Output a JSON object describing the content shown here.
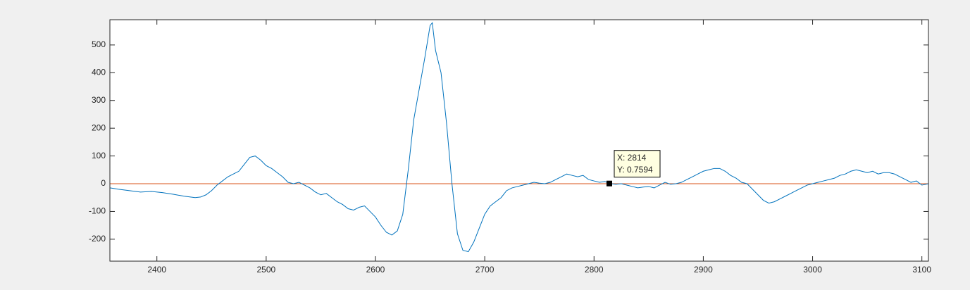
{
  "chart_data": {
    "type": "line",
    "series": [
      {
        "color": "#0072bd",
        "x": [
          2357,
          2365,
          2375,
          2385,
          2395,
          2405,
          2415,
          2425,
          2435,
          2440,
          2445,
          2450,
          2455,
          2460,
          2465,
          2470,
          2475,
          2480,
          2485,
          2490,
          2495,
          2500,
          2505,
          2510,
          2515,
          2520,
          2525,
          2530,
          2535,
          2540,
          2545,
          2550,
          2555,
          2560,
          2565,
          2570,
          2575,
          2580,
          2585,
          2590,
          2595,
          2600,
          2605,
          2610,
          2615,
          2620,
          2625,
          2630,
          2635,
          2640,
          2645,
          2650,
          2652,
          2655,
          2660,
          2665,
          2670,
          2675,
          2680,
          2685,
          2690,
          2695,
          2700,
          2705,
          2710,
          2715,
          2720,
          2725,
          2730,
          2735,
          2740,
          2745,
          2750,
          2755,
          2760,
          2765,
          2770,
          2775,
          2780,
          2785,
          2790,
          2795,
          2800,
          2805,
          2810,
          2814,
          2820,
          2825,
          2830,
          2835,
          2840,
          2845,
          2850,
          2855,
          2860,
          2865,
          2870,
          2875,
          2880,
          2885,
          2890,
          2895,
          2900,
          2905,
          2910,
          2915,
          2920,
          2925,
          2930,
          2935,
          2940,
          2945,
          2950,
          2955,
          2960,
          2965,
          2970,
          2975,
          2980,
          2985,
          2990,
          2995,
          3000,
          3005,
          3010,
          3015,
          3020,
          3025,
          3030,
          3035,
          3040,
          3045,
          3050,
          3055,
          3060,
          3065,
          3070,
          3075,
          3080,
          3085,
          3090,
          3095,
          3100,
          3106
        ],
        "values": [
          -15,
          -20,
          -25,
          -30,
          -28,
          -32,
          -38,
          -45,
          -50,
          -48,
          -40,
          -25,
          -5,
          10,
          25,
          35,
          45,
          70,
          95,
          100,
          85,
          65,
          55,
          40,
          25,
          5,
          0,
          5,
          -5,
          -15,
          -30,
          -40,
          -35,
          -50,
          -65,
          -75,
          -90,
          -95,
          -85,
          -80,
          -100,
          -120,
          -150,
          -175,
          -185,
          -170,
          -110,
          50,
          230,
          340,
          450,
          570,
          580,
          480,
          400,
          220,
          0,
          -180,
          -240,
          -245,
          -210,
          -160,
          -110,
          -80,
          -65,
          -50,
          -25,
          -15,
          -10,
          -5,
          0,
          5,
          2,
          0,
          5,
          15,
          25,
          35,
          30,
          25,
          30,
          15,
          10,
          5,
          8,
          0.7594,
          -2,
          0,
          -5,
          -10,
          -15,
          -12,
          -10,
          -15,
          -5,
          5,
          -2,
          0,
          5,
          15,
          25,
          35,
          45,
          50,
          55,
          55,
          45,
          30,
          20,
          5,
          0,
          -20,
          -40,
          -60,
          -70,
          -65,
          -55,
          -45,
          -35,
          -25,
          -15,
          -5,
          0,
          5,
          10,
          15,
          20,
          30,
          35,
          45,
          50,
          45,
          40,
          45,
          35,
          40,
          40,
          35,
          25,
          15,
          5,
          10,
          -5,
          0
        ]
      },
      {
        "color": "#d95319",
        "x": [
          2357,
          3106
        ],
        "values": [
          0,
          0
        ]
      }
    ],
    "datatip": {
      "x": 2814,
      "y": 0.7594,
      "label_x": "X: 2814",
      "label_y": "Y: 0.7594"
    },
    "xlim": [
      2357,
      3106
    ],
    "xticks": [
      2400,
      2500,
      2600,
      2700,
      2800,
      2900,
      3000,
      3100
    ],
    "ylim": [
      -279,
      591
    ],
    "yticks": [
      -200,
      -100,
      0,
      100,
      200,
      300,
      400,
      500
    ]
  }
}
